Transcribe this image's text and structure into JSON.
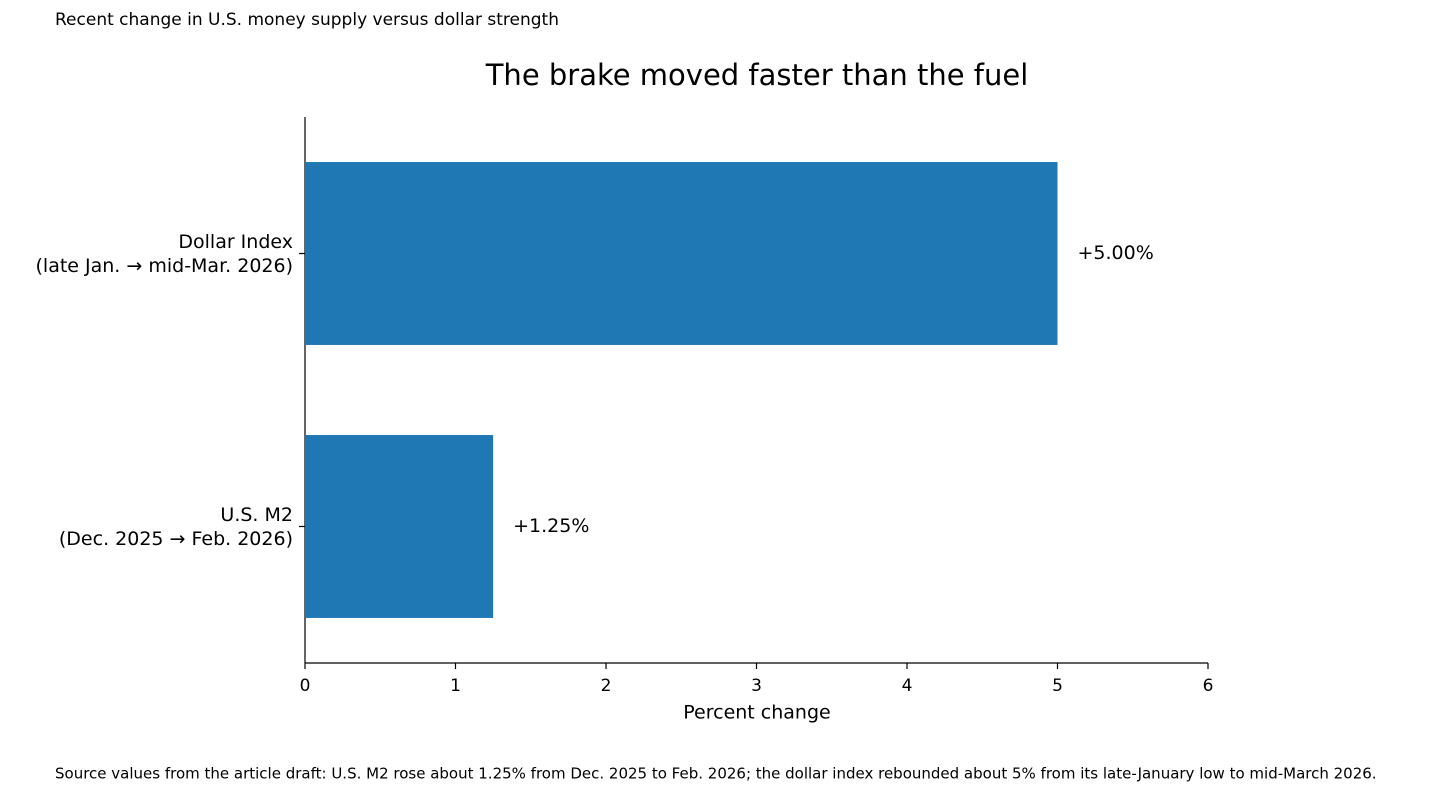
{
  "chart_data": {
    "type": "barh",
    "subtitle": "Recent change in U.S. money supply versus dollar strength",
    "title": "The brake moved faster than the fuel",
    "categories": [
      "U.S. M2\n(Dec. 2025 → Feb. 2026)",
      "Dollar Index\n(late Jan. → mid-Mar. 2026)"
    ],
    "values": [
      1.25,
      5.0
    ],
    "value_labels": [
      "+1.25%",
      "+5.00%"
    ],
    "color": "#1f77b4",
    "xlabel": "Percent change",
    "xlim": [
      0,
      6
    ],
    "xticks": [
      0,
      1,
      2,
      3,
      4,
      5,
      6
    ],
    "grid": false,
    "footnote": "Source values from the article draft: U.S. M2 rose about 1.25% from Dec. 2025 to Feb. 2026; the dollar index rebounded about 5% from its late-January low to mid-March 2026."
  }
}
